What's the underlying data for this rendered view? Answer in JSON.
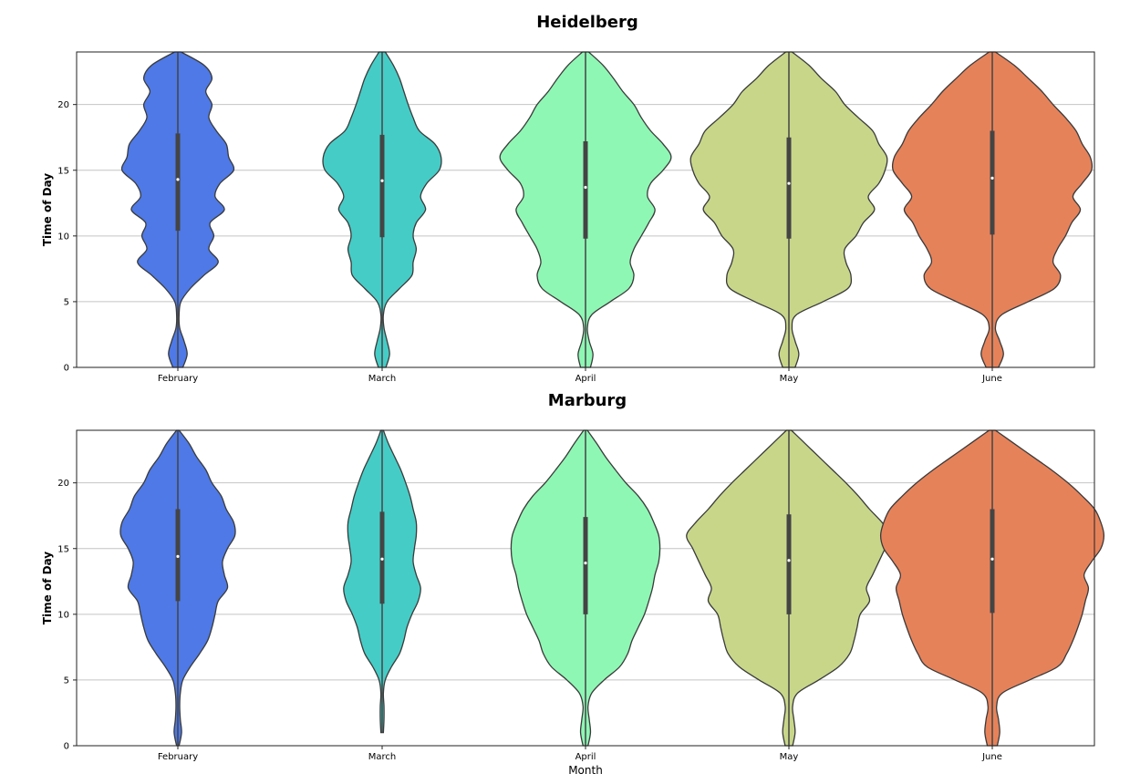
{
  "chart_data": [
    {
      "type": "violin",
      "title": "Heidelberg",
      "ylabel": "Time of Day",
      "xlabel": "",
      "ylim": [
        0,
        24
      ],
      "yticks": [
        0,
        5,
        10,
        15,
        20
      ],
      "grid": "horizontal",
      "categories": [
        "February",
        "March",
        "April",
        "May",
        "June"
      ],
      "colors": [
        "#4e79e6",
        "#46ccc6",
        "#8ef7b4",
        "#c8d68a",
        "#e6825a"
      ],
      "violins": [
        {
          "category": "February",
          "min": 0,
          "q1": 10.4,
          "median": 14.3,
          "q3": 17.8,
          "max": 24,
          "profile": [
            [
              0,
              0.08
            ],
            [
              1,
              0.15
            ],
            [
              2,
              0.1
            ],
            [
              3,
              0.03
            ],
            [
              4,
              0.02
            ],
            [
              5,
              0.05
            ],
            [
              6,
              0.2
            ],
            [
              7,
              0.42
            ],
            [
              8,
              0.65
            ],
            [
              9,
              0.5
            ],
            [
              10,
              0.58
            ],
            [
              11,
              0.52
            ],
            [
              12,
              0.75
            ],
            [
              13,
              0.6
            ],
            [
              14,
              0.68
            ],
            [
              15,
              0.9
            ],
            [
              16,
              0.82
            ],
            [
              17,
              0.78
            ],
            [
              18,
              0.62
            ],
            [
              19,
              0.5
            ],
            [
              20,
              0.55
            ],
            [
              21,
              0.45
            ],
            [
              22,
              0.55
            ],
            [
              23,
              0.42
            ],
            [
              24,
              0.05
            ]
          ]
        },
        {
          "category": "March",
          "min": 0,
          "q1": 9.9,
          "median": 14.2,
          "q3": 17.7,
          "max": 24,
          "profile": [
            [
              0,
              0.06
            ],
            [
              1,
              0.12
            ],
            [
              2,
              0.08
            ],
            [
              3,
              0.03
            ],
            [
              4,
              0.02
            ],
            [
              5,
              0.08
            ],
            [
              6,
              0.28
            ],
            [
              7,
              0.48
            ],
            [
              8,
              0.5
            ],
            [
              9,
              0.55
            ],
            [
              10,
              0.5
            ],
            [
              11,
              0.55
            ],
            [
              12,
              0.7
            ],
            [
              13,
              0.62
            ],
            [
              14,
              0.72
            ],
            [
              15,
              0.92
            ],
            [
              16,
              0.95
            ],
            [
              17,
              0.85
            ],
            [
              18,
              0.6
            ],
            [
              19,
              0.5
            ],
            [
              20,
              0.42
            ],
            [
              21,
              0.35
            ],
            [
              22,
              0.28
            ],
            [
              23,
              0.18
            ],
            [
              24,
              0.05
            ]
          ]
        },
        {
          "category": "April",
          "min": 0,
          "q1": 9.8,
          "median": 13.7,
          "q3": 17.2,
          "max": 24,
          "profile": [
            [
              0,
              0.08
            ],
            [
              1,
              0.12
            ],
            [
              2,
              0.06
            ],
            [
              3,
              0.03
            ],
            [
              4,
              0.1
            ],
            [
              5,
              0.4
            ],
            [
              6,
              0.7
            ],
            [
              7,
              0.78
            ],
            [
              8,
              0.72
            ],
            [
              9,
              0.78
            ],
            [
              10,
              0.9
            ],
            [
              11,
              1.02
            ],
            [
              12,
              1.12
            ],
            [
              13,
              1.0
            ],
            [
              14,
              1.05
            ],
            [
              15,
              1.25
            ],
            [
              16,
              1.38
            ],
            [
              17,
              1.25
            ],
            [
              18,
              1.05
            ],
            [
              19,
              0.9
            ],
            [
              20,
              0.78
            ],
            [
              21,
              0.6
            ],
            [
              22,
              0.45
            ],
            [
              23,
              0.28
            ],
            [
              24,
              0.05
            ]
          ]
        },
        {
          "category": "May",
          "min": 0,
          "q1": 9.8,
          "median": 14.0,
          "q3": 17.5,
          "max": 24,
          "profile": [
            [
              0,
              0.1
            ],
            [
              1,
              0.16
            ],
            [
              2,
              0.1
            ],
            [
              3,
              0.05
            ],
            [
              4,
              0.12
            ],
            [
              5,
              0.55
            ],
            [
              6,
              0.95
            ],
            [
              7,
              1.0
            ],
            [
              8,
              0.92
            ],
            [
              9,
              0.9
            ],
            [
              10,
              1.08
            ],
            [
              11,
              1.2
            ],
            [
              12,
              1.38
            ],
            [
              13,
              1.28
            ],
            [
              14,
              1.45
            ],
            [
              15,
              1.55
            ],
            [
              16,
              1.58
            ],
            [
              17,
              1.45
            ],
            [
              18,
              1.35
            ],
            [
              19,
              1.12
            ],
            [
              20,
              0.9
            ],
            [
              21,
              0.75
            ],
            [
              22,
              0.52
            ],
            [
              23,
              0.32
            ],
            [
              24,
              0.05
            ]
          ]
        },
        {
          "category": "June",
          "min": 0,
          "q1": 10.1,
          "median": 14.4,
          "q3": 18.0,
          "max": 24,
          "profile": [
            [
              0,
              0.1
            ],
            [
              1,
              0.18
            ],
            [
              2,
              0.12
            ],
            [
              3,
              0.05
            ],
            [
              4,
              0.15
            ],
            [
              5,
              0.58
            ],
            [
              6,
              1.0
            ],
            [
              7,
              1.1
            ],
            [
              8,
              0.98
            ],
            [
              9,
              1.05
            ],
            [
              10,
              1.18
            ],
            [
              11,
              1.28
            ],
            [
              12,
              1.42
            ],
            [
              13,
              1.3
            ],
            [
              14,
              1.45
            ],
            [
              15,
              1.6
            ],
            [
              16,
              1.58
            ],
            [
              17,
              1.45
            ],
            [
              18,
              1.35
            ],
            [
              19,
              1.18
            ],
            [
              20,
              0.98
            ],
            [
              21,
              0.8
            ],
            [
              22,
              0.58
            ],
            [
              23,
              0.35
            ],
            [
              24,
              0.05
            ]
          ]
        }
      ]
    },
    {
      "type": "violin",
      "title": "Marburg",
      "ylabel": "Time of Day",
      "xlabel": "Month",
      "ylim": [
        0,
        24
      ],
      "yticks": [
        0,
        5,
        10,
        15,
        20
      ],
      "grid": "horizontal",
      "categories": [
        "February",
        "March",
        "April",
        "May",
        "June"
      ],
      "colors": [
        "#4e79e6",
        "#46ccc6",
        "#8ef7b4",
        "#c8d68a",
        "#e6825a"
      ],
      "violins": [
        {
          "category": "February",
          "min": 0,
          "q1": 11.0,
          "median": 14.4,
          "q3": 18.0,
          "max": 24,
          "profile": [
            [
              0,
              0.02
            ],
            [
              1,
              0.06
            ],
            [
              2,
              0.04
            ],
            [
              3,
              0.03
            ],
            [
              4,
              0.04
            ],
            [
              5,
              0.08
            ],
            [
              6,
              0.2
            ],
            [
              7,
              0.35
            ],
            [
              8,
              0.48
            ],
            [
              9,
              0.55
            ],
            [
              10,
              0.6
            ],
            [
              11,
              0.65
            ],
            [
              12,
              0.8
            ],
            [
              13,
              0.75
            ],
            [
              14,
              0.72
            ],
            [
              15,
              0.8
            ],
            [
              16,
              0.92
            ],
            [
              17,
              0.9
            ],
            [
              18,
              0.78
            ],
            [
              19,
              0.7
            ],
            [
              20,
              0.55
            ],
            [
              21,
              0.45
            ],
            [
              22,
              0.3
            ],
            [
              23,
              0.18
            ],
            [
              24,
              0.02
            ]
          ]
        },
        {
          "category": "March",
          "min": 1,
          "q1": 10.8,
          "median": 14.2,
          "q3": 17.8,
          "max": 24,
          "profile": [
            [
              1,
              0.02
            ],
            [
              2,
              0.03
            ],
            [
              3,
              0.03
            ],
            [
              4,
              0.02
            ],
            [
              5,
              0.05
            ],
            [
              6,
              0.15
            ],
            [
              7,
              0.28
            ],
            [
              8,
              0.35
            ],
            [
              9,
              0.4
            ],
            [
              10,
              0.48
            ],
            [
              11,
              0.58
            ],
            [
              12,
              0.62
            ],
            [
              13,
              0.55
            ],
            [
              14,
              0.5
            ],
            [
              15,
              0.52
            ],
            [
              16,
              0.55
            ],
            [
              17,
              0.55
            ],
            [
              18,
              0.5
            ],
            [
              19,
              0.45
            ],
            [
              20,
              0.38
            ],
            [
              21,
              0.3
            ],
            [
              22,
              0.2
            ],
            [
              23,
              0.1
            ],
            [
              24,
              0.02
            ]
          ]
        },
        {
          "category": "April",
          "min": 0,
          "q1": 10.0,
          "median": 13.9,
          "q3": 17.4,
          "max": 24,
          "profile": [
            [
              0,
              0.04
            ],
            [
              1,
              0.08
            ],
            [
              2,
              0.06
            ],
            [
              3,
              0.04
            ],
            [
              4,
              0.1
            ],
            [
              5,
              0.3
            ],
            [
              6,
              0.55
            ],
            [
              7,
              0.68
            ],
            [
              8,
              0.75
            ],
            [
              9,
              0.85
            ],
            [
              10,
              0.95
            ],
            [
              11,
              1.02
            ],
            [
              12,
              1.08
            ],
            [
              13,
              1.12
            ],
            [
              14,
              1.18
            ],
            [
              15,
              1.2
            ],
            [
              16,
              1.18
            ],
            [
              17,
              1.1
            ],
            [
              18,
              1.0
            ],
            [
              19,
              0.85
            ],
            [
              20,
              0.65
            ],
            [
              21,
              0.48
            ],
            [
              22,
              0.32
            ],
            [
              23,
              0.18
            ],
            [
              24,
              0.03
            ]
          ]
        },
        {
          "category": "May",
          "min": 0,
          "q1": 10.0,
          "median": 14.1,
          "q3": 17.6,
          "max": 24,
          "profile": [
            [
              0,
              0.06
            ],
            [
              1,
              0.1
            ],
            [
              2,
              0.08
            ],
            [
              3,
              0.06
            ],
            [
              4,
              0.14
            ],
            [
              5,
              0.48
            ],
            [
              6,
              0.8
            ],
            [
              7,
              0.98
            ],
            [
              8,
              1.05
            ],
            [
              9,
              1.1
            ],
            [
              10,
              1.15
            ],
            [
              11,
              1.3
            ],
            [
              12,
              1.25
            ],
            [
              13,
              1.35
            ],
            [
              14,
              1.45
            ],
            [
              15,
              1.55
            ],
            [
              16,
              1.65
            ],
            [
              17,
              1.5
            ],
            [
              18,
              1.3
            ],
            [
              19,
              1.12
            ],
            [
              20,
              0.92
            ],
            [
              21,
              0.7
            ],
            [
              22,
              0.48
            ],
            [
              23,
              0.26
            ],
            [
              24,
              0.04
            ]
          ]
        },
        {
          "category": "June",
          "min": 0,
          "q1": 10.1,
          "median": 14.2,
          "q3": 18.0,
          "max": 24,
          "profile": [
            [
              0,
              0.08
            ],
            [
              1,
              0.12
            ],
            [
              2,
              0.1
            ],
            [
              3,
              0.07
            ],
            [
              4,
              0.16
            ],
            [
              5,
              0.6
            ],
            [
              6,
              1.05
            ],
            [
              7,
              1.2
            ],
            [
              8,
              1.3
            ],
            [
              9,
              1.38
            ],
            [
              10,
              1.45
            ],
            [
              11,
              1.5
            ],
            [
              12,
              1.55
            ],
            [
              13,
              1.48
            ],
            [
              14,
              1.6
            ],
            [
              15,
              1.75
            ],
            [
              16,
              1.8
            ],
            [
              17,
              1.75
            ],
            [
              18,
              1.65
            ],
            [
              19,
              1.45
            ],
            [
              20,
              1.22
            ],
            [
              21,
              0.95
            ],
            [
              22,
              0.65
            ],
            [
              23,
              0.35
            ],
            [
              24,
              0.05
            ]
          ]
        }
      ]
    }
  ]
}
